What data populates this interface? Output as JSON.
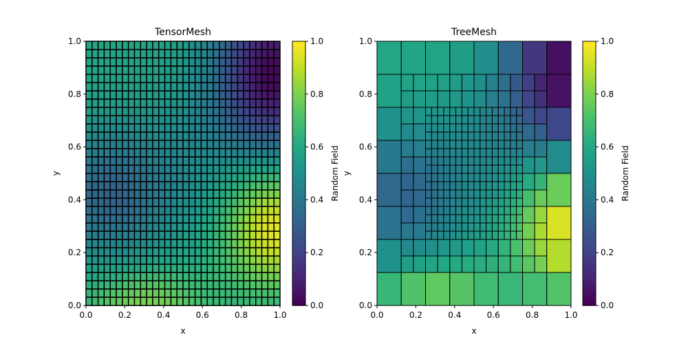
{
  "chart_data": [
    {
      "type": "heatmap",
      "title": "TensorMesh",
      "xlabel": "x",
      "ylabel": "y",
      "xlim": [
        0,
        1
      ],
      "ylim": [
        0,
        1
      ],
      "xticks": [
        "0.0",
        "0.2",
        "0.4",
        "0.6",
        "0.8",
        "1.0"
      ],
      "yticks": [
        "0.0",
        "0.2",
        "0.4",
        "0.6",
        "0.8",
        "1.0"
      ],
      "colorbar": {
        "label": "Random Field",
        "range": [
          0,
          1
        ],
        "ticks": [
          "0.0",
          "0.2",
          "0.4",
          "0.6",
          "0.8",
          "1.0"
        ],
        "colormap": "viridis"
      },
      "grid": {
        "nx": 32,
        "ny": 32
      },
      "field_model": "smooth random field: high (~0.95) near x≈0.95,y≈0.3; low (~0.05) near x≈0.95,y≈0.85; low (~0.35) near x≈0.15,y≈0.4; high (~0.8) near x≈0.3,y≈0.02",
      "values_sample": [
        {
          "x": 0.95,
          "y": 0.3,
          "value": 0.95
        },
        {
          "x": 0.95,
          "y": 0.85,
          "value": 0.05
        },
        {
          "x": 0.15,
          "y": 0.4,
          "value": 0.35
        },
        {
          "x": 0.3,
          "y": 0.02,
          "value": 0.8
        },
        {
          "x": 0.05,
          "y": 0.95,
          "value": 0.6
        },
        {
          "x": 0.5,
          "y": 0.6,
          "value": 0.55
        }
      ]
    },
    {
      "type": "heatmap",
      "title": "TreeMesh",
      "xlabel": "x",
      "ylabel": "y",
      "xlim": [
        0,
        1
      ],
      "ylim": [
        0,
        1
      ],
      "xticks": [
        "0.0",
        "0.2",
        "0.4",
        "0.6",
        "0.8",
        "1.0"
      ],
      "yticks": [
        "0.0",
        "0.2",
        "0.4",
        "0.6",
        "0.8",
        "1.0"
      ],
      "colorbar": {
        "label": "Random Field",
        "range": [
          0,
          1
        ],
        "ticks": [
          "0.0",
          "0.2",
          "0.4",
          "0.6",
          "0.8",
          "1.0"
        ],
        "colormap": "viridis"
      },
      "refinement": {
        "coarse_cell": 0.125,
        "medium_cell": 0.0625,
        "fine_cell": 0.03125,
        "fine_region": [
          0.25,
          0.75,
          0.25,
          0.75
        ]
      },
      "values_sample": [
        {
          "x": 0.9375,
          "y": 0.3125,
          "value": 0.95
        },
        {
          "x": 0.9375,
          "y": 0.8125,
          "value": 0.05
        },
        {
          "x": 0.9375,
          "y": 0.9375,
          "value": 0.15
        },
        {
          "x": 0.0625,
          "y": 0.0625,
          "value": 0.7
        },
        {
          "x": 0.4375,
          "y": 0.0625,
          "value": 0.85
        },
        {
          "x": 0.0625,
          "y": 0.3125,
          "value": 0.35
        }
      ]
    }
  ]
}
